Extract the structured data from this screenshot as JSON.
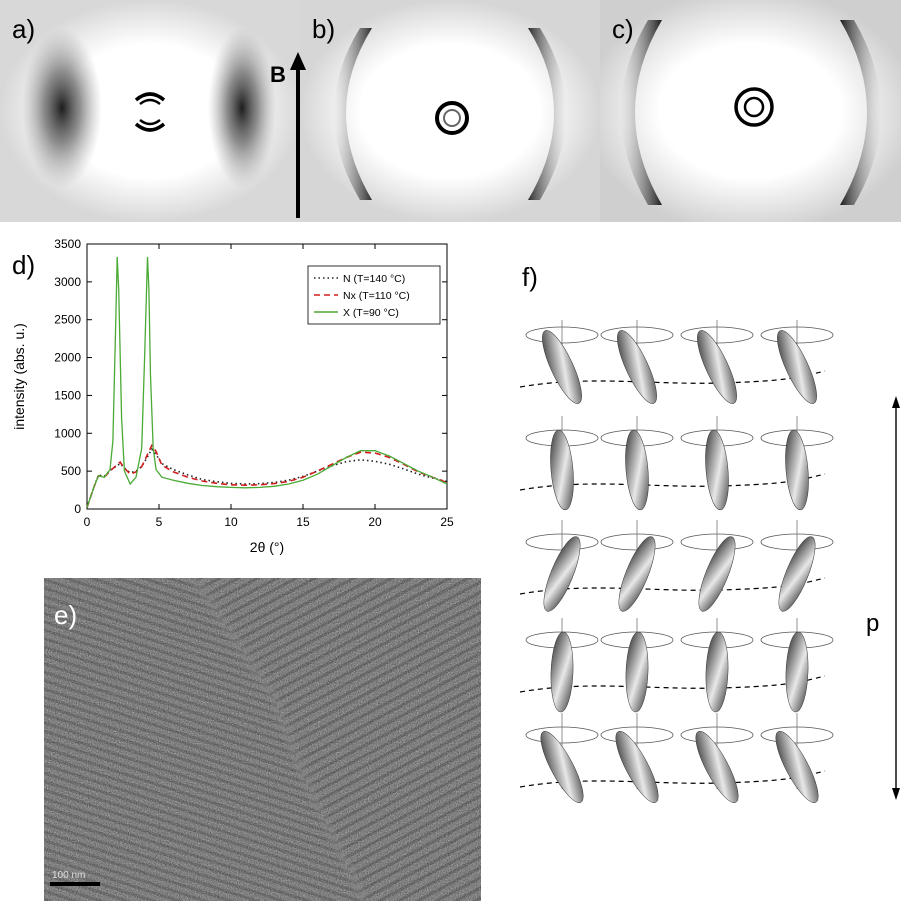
{
  "panels": {
    "a": "a)",
    "b": "b)",
    "c": "c)",
    "d": "d)",
    "e": "e)",
    "f": "f)"
  },
  "field_label": "B",
  "pitch_label": "p",
  "scale_bar": "100 nm",
  "chart_data": {
    "type": "line",
    "xlabel": "2θ (°)",
    "ylabel": "intensity (abs. u.)",
    "xlim": [
      0,
      25
    ],
    "ylim": [
      0,
      3500
    ],
    "xticks": [
      0,
      5,
      10,
      15,
      20,
      25
    ],
    "yticks": [
      0,
      500,
      1000,
      1500,
      2000,
      2500,
      3000,
      3500
    ],
    "grid": false,
    "legend_position": "top-right",
    "series": [
      {
        "name": "N (T=140 °C)",
        "color": "#222222",
        "style": "dotted",
        "x": [
          0,
          0.5,
          0.8,
          1.2,
          1.6,
          2.0,
          2.3,
          2.6,
          3.0,
          3.4,
          3.8,
          4.2,
          4.5,
          4.8,
          5.2,
          6,
          7,
          8,
          9,
          10,
          11,
          12,
          13,
          14,
          15,
          16,
          17,
          18,
          19,
          20,
          21,
          22,
          23,
          24,
          25
        ],
        "y": [
          20,
          300,
          450,
          430,
          510,
          560,
          600,
          540,
          480,
          500,
          560,
          690,
          790,
          720,
          600,
          520,
          450,
          390,
          360,
          340,
          330,
          335,
          350,
          380,
          430,
          500,
          570,
          625,
          650,
          630,
          590,
          530,
          460,
          410,
          360
        ]
      },
      {
        "name": "N_x (T=110 °C)",
        "color": "#d11f1f",
        "style": "dashed",
        "x": [
          0,
          0.5,
          0.8,
          1.2,
          1.6,
          2.0,
          2.3,
          2.6,
          3.0,
          3.4,
          3.8,
          4.2,
          4.5,
          4.8,
          5.2,
          6,
          7,
          8,
          9,
          10,
          11,
          12,
          13,
          14,
          15,
          16,
          17,
          18,
          19,
          20,
          21,
          22,
          23,
          24,
          25
        ],
        "y": [
          20,
          300,
          440,
          420,
          500,
          570,
          620,
          540,
          460,
          490,
          560,
          720,
          840,
          760,
          580,
          490,
          420,
          370,
          340,
          320,
          315,
          320,
          335,
          365,
          420,
          500,
          590,
          680,
          750,
          740,
          680,
          590,
          490,
          420,
          350
        ]
      },
      {
        "name": "X (T=90 °C)",
        "color": "#4aaa35",
        "style": "solid",
        "x": [
          0,
          0.5,
          0.8,
          1.2,
          1.6,
          1.8,
          2.0,
          2.1,
          2.2,
          2.4,
          2.6,
          3.0,
          3.4,
          3.8,
          4.0,
          4.2,
          4.3,
          4.4,
          4.6,
          4.8,
          5.2,
          6,
          7,
          8,
          9,
          10,
          11,
          12,
          13,
          14,
          15,
          16,
          17,
          18,
          19,
          20,
          21,
          22,
          23,
          24,
          25
        ],
        "y": [
          20,
          300,
          440,
          420,
          520,
          900,
          2500,
          3330,
          2900,
          1200,
          500,
          330,
          420,
          800,
          2000,
          3330,
          2900,
          1800,
          800,
          520,
          420,
          380,
          340,
          310,
          295,
          285,
          280,
          285,
          300,
          330,
          380,
          460,
          570,
          680,
          770,
          770,
          700,
          600,
          500,
          420,
          330
        ]
      }
    ]
  },
  "colors": {
    "n_series": "#222222",
    "nx_series": "#d11f1f",
    "x_series": "#4aaa35"
  }
}
